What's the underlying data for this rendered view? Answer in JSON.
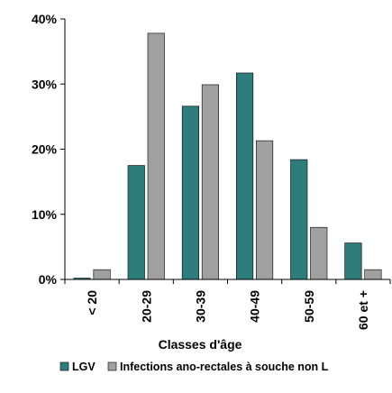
{
  "chart_data": {
    "type": "bar",
    "categories": [
      "< 20",
      "20-29",
      "30-39",
      "40-49",
      "50-59",
      "60 et +"
    ],
    "series": [
      {
        "name": "LGV",
        "color": "#2e7d7d",
        "values": [
          0.2,
          17.5,
          26.6,
          31.7,
          18.4,
          5.6
        ]
      },
      {
        "name": "Infections ano-rectales à souche non L",
        "color": "#a0a0a0",
        "values": [
          1.5,
          37.8,
          29.9,
          21.3,
          8.0,
          1.5
        ]
      }
    ],
    "ylim": [
      0,
      40
    ],
    "yticks": [
      "0%",
      "10%",
      "20%",
      "30%",
      "40%"
    ],
    "xlabel": "Classes d'âge",
    "ylabel": "",
    "grid": false,
    "legend": "bottom"
  }
}
